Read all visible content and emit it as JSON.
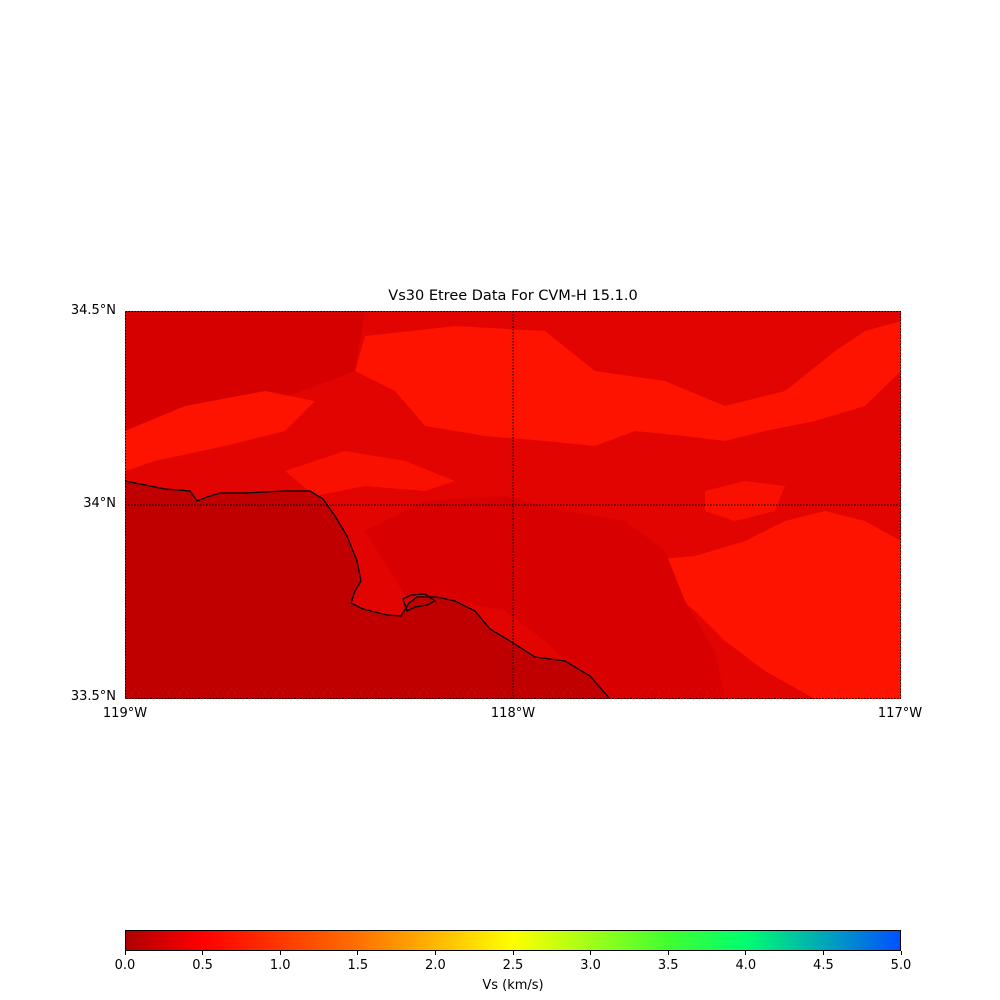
{
  "title": "Vs30 Etree Data For CVM-H 15.1.0",
  "map": {
    "lat_labels": [
      "34.5°N",
      "34°N",
      "33.5°N"
    ],
    "lon_labels": [
      "119°W",
      "118°W",
      "117°W"
    ],
    "lat_range": [
      33.5,
      34.5
    ],
    "lon_range": [
      -119,
      -117
    ],
    "gridlines": "dotted",
    "colors": {
      "ocean": "#c00000",
      "basin": "#d80000",
      "mid": "#e40600",
      "high": "#fe1200",
      "coastline": "#000000"
    }
  },
  "colorbar": {
    "label": "Vs (km/s)",
    "ticks": [
      "0.0",
      "0.5",
      "1.0",
      "1.5",
      "2.0",
      "2.5",
      "3.0",
      "3.5",
      "4.0",
      "4.5",
      "5.0"
    ],
    "range": [
      0,
      5
    ],
    "colors": [
      "#b00000",
      "#ff0000",
      "#ff7000",
      "#ffff00",
      "#40ff30",
      "#00ff70",
      "#0050ff"
    ]
  }
}
